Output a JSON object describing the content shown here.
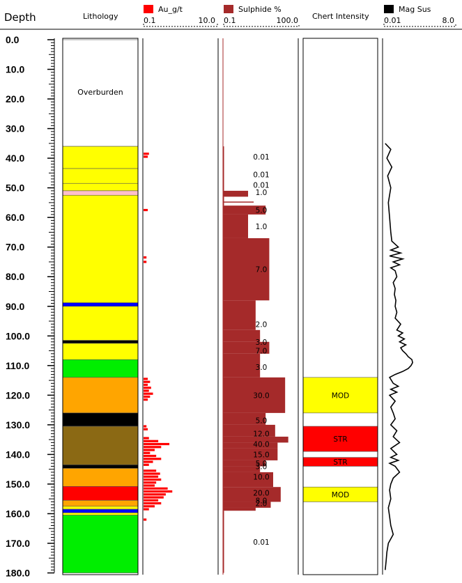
{
  "chart_data": {
    "type": "table",
    "depth": {
      "title": "Depth",
      "min": 0,
      "max": 180,
      "tick_labels": [
        "0.0",
        "10.0",
        "20.0",
        "30.0",
        "40.0",
        "50.0",
        "60.0",
        "70.0",
        "80.0",
        "90.0",
        "100.0",
        "110.0",
        "120.0",
        "130.0",
        "140.0",
        "150.0",
        "160.0",
        "170.0",
        "180.0"
      ]
    },
    "lithology": {
      "title": "Lithology",
      "overburden_label": "Overburden",
      "intervals": [
        {
          "from": 0,
          "to": 36,
          "color": "#ffffff"
        },
        {
          "from": 36,
          "to": 43.5,
          "color": "#ffff00"
        },
        {
          "from": 43.5,
          "to": 48.5,
          "color": "#ffff00"
        },
        {
          "from": 48.5,
          "to": 51,
          "color": "#ffff00"
        },
        {
          "from": 51,
          "to": 52.5,
          "color": "#ffc0cb"
        },
        {
          "from": 52.5,
          "to": 88.8,
          "color": "#ffff00"
        },
        {
          "from": 88.8,
          "to": 90,
          "color": "#0000ff"
        },
        {
          "from": 90,
          "to": 101.5,
          "color": "#ffff00"
        },
        {
          "from": 101.5,
          "to": 102.5,
          "color": "#000000"
        },
        {
          "from": 102.5,
          "to": 108,
          "color": "#ffff00"
        },
        {
          "from": 108,
          "to": 114,
          "color": "#00ee00"
        },
        {
          "from": 114,
          "to": 126,
          "color": "#ffa500"
        },
        {
          "from": 126,
          "to": 130.5,
          "color": "#000000"
        },
        {
          "from": 130.5,
          "to": 143.5,
          "color": "#8b6914"
        },
        {
          "from": 143.5,
          "to": 144.7,
          "color": "#000000"
        },
        {
          "from": 144.7,
          "to": 150.8,
          "color": "#ffa500"
        },
        {
          "from": 150.8,
          "to": 155.5,
          "color": "#ff0000"
        },
        {
          "from": 155.5,
          "to": 157.5,
          "color": "#ffa500"
        },
        {
          "from": 157.5,
          "to": 158.5,
          "color": "#ffff00"
        },
        {
          "from": 158.5,
          "to": 159.7,
          "color": "#0000ff"
        },
        {
          "from": 159.7,
          "to": 160.5,
          "color": "#ffff00"
        },
        {
          "from": 160.5,
          "to": 180,
          "color": "#00ee00"
        }
      ]
    },
    "au": {
      "title": "Au_g/t",
      "color": "#ff0000",
      "scale_min_label": "0.1",
      "scale_max_label": "10.0",
      "scale": "log",
      "range": [
        0.1,
        10
      ],
      "bars": [
        [
          38.5,
          0.14
        ],
        [
          39.5,
          0.13
        ],
        [
          57.5,
          0.13
        ],
        [
          73.5,
          0.12
        ],
        [
          75,
          0.12
        ],
        [
          114.5,
          0.13
        ],
        [
          115.5,
          0.15
        ],
        [
          116.5,
          0.13
        ],
        [
          117.5,
          0.16
        ],
        [
          118.5,
          0.14
        ],
        [
          119.5,
          0.18
        ],
        [
          120.5,
          0.15
        ],
        [
          121.5,
          0.13
        ],
        [
          130.5,
          0.12
        ],
        [
          131.5,
          0.13
        ],
        [
          134.5,
          0.14
        ],
        [
          135.5,
          0.25
        ],
        [
          136.5,
          0.5
        ],
        [
          137.5,
          0.3
        ],
        [
          138.5,
          0.2
        ],
        [
          139.5,
          0.15
        ],
        [
          140.5,
          0.22
        ],
        [
          141.5,
          0.3
        ],
        [
          142.5,
          0.18
        ],
        [
          143.5,
          0.14
        ],
        [
          145.5,
          0.22
        ],
        [
          146.5,
          0.28
        ],
        [
          147.5,
          0.25
        ],
        [
          148.5,
          0.3
        ],
        [
          149.5,
          0.22
        ],
        [
          150.5,
          0.2
        ],
        [
          151.5,
          0.45
        ],
        [
          152.5,
          0.6
        ],
        [
          153.5,
          0.4
        ],
        [
          154.5,
          0.35
        ],
        [
          155.5,
          0.25
        ],
        [
          156.5,
          0.3
        ],
        [
          157.5,
          0.2
        ],
        [
          158.5,
          0.14
        ],
        [
          162,
          0.12
        ]
      ]
    },
    "sulphide": {
      "title": "Sulphide %",
      "color": "#a52a2a",
      "scale_min_label": "0.1",
      "scale_max_label": "100.0",
      "scale": "log",
      "range": [
        0.1,
        100
      ],
      "intervals": [
        {
          "from": 36,
          "to": 51,
          "value": 0.01
        },
        {
          "from": 51,
          "to": 53,
          "value": 1.0
        },
        {
          "from": 53,
          "to": 56,
          "value": 0.01
        },
        {
          "from": 56,
          "to": 59,
          "value": 5.0
        },
        {
          "from": 59,
          "to": 67,
          "value": 1.0
        },
        {
          "from": 67,
          "to": 88,
          "value": 7.0
        },
        {
          "from": 88,
          "to": 98,
          "value": 2.0
        },
        {
          "from": 98,
          "to": 102,
          "value": 3.0
        },
        {
          "from": 102,
          "to": 106,
          "value": 7.0
        },
        {
          "from": 106,
          "to": 114,
          "value": 3.0
        },
        {
          "from": 114,
          "to": 126,
          "value": 30.0
        },
        {
          "from": 126,
          "to": 130,
          "value": 5.0
        },
        {
          "from": 130,
          "to": 134,
          "value": 12.0
        },
        {
          "from": 134,
          "to": 136,
          "value": 40.0
        },
        {
          "from": 136,
          "to": 138,
          "value": 15.0
        },
        {
          "from": 138,
          "to": 142,
          "value": 15.0
        },
        {
          "from": 142,
          "to": 144,
          "value": 5.0
        },
        {
          "from": 144,
          "to": 146,
          "value": 3.0
        },
        {
          "from": 146,
          "to": 151,
          "value": 10.0
        },
        {
          "from": 151,
          "to": 156,
          "value": 20.0
        },
        {
          "from": 156,
          "to": 158,
          "value": 8.0
        },
        {
          "from": 158,
          "to": 159,
          "value": 2.0
        },
        {
          "from": 159,
          "to": 180,
          "value": 0.01
        }
      ],
      "spike": {
        "depth": 54.8,
        "value": 100
      },
      "labels": [
        {
          "depth": 39.5,
          "text": "0.01"
        },
        {
          "depth": 45.5,
          "text": "0.01"
        },
        {
          "depth": 49.0,
          "text": "0.01"
        },
        {
          "depth": 51.5,
          "text": "1.0"
        },
        {
          "depth": 57.5,
          "text": "5.0"
        },
        {
          "depth": 63.0,
          "text": "1.0"
        },
        {
          "depth": 77.5,
          "text": "7.0"
        },
        {
          "depth": 96.0,
          "text": "2.0"
        },
        {
          "depth": 102.0,
          "text": "3.0"
        },
        {
          "depth": 105.0,
          "text": "7.0"
        },
        {
          "depth": 110.5,
          "text": "3.0"
        },
        {
          "depth": 120.0,
          "text": "30.0"
        },
        {
          "depth": 128.5,
          "text": "5.0"
        },
        {
          "depth": 133.0,
          "text": "12.0"
        },
        {
          "depth": 136.5,
          "text": "40.0"
        },
        {
          "depth": 140.0,
          "text": "15.0"
        },
        {
          "depth": 143.0,
          "text": "5.0"
        },
        {
          "depth": 144.0,
          "text": "3.0"
        },
        {
          "depth": 147.5,
          "text": "10.0"
        },
        {
          "depth": 153.0,
          "text": "20.0"
        },
        {
          "depth": 155.5,
          "text": "8.0"
        },
        {
          "depth": 156.5,
          "text": "2.0"
        },
        {
          "depth": 169.5,
          "text": "0.01"
        }
      ]
    },
    "chert": {
      "title": "Chert Intensity",
      "intervals": [
        {
          "from": 114,
          "to": 126,
          "label": "MOD",
          "color": "#ffff00"
        },
        {
          "from": 130.5,
          "to": 139,
          "label": "STR",
          "color": "#ff0000"
        },
        {
          "from": 141,
          "to": 144,
          "label": "STR",
          "color": "#ff0000"
        },
        {
          "from": 151,
          "to": 156,
          "label": "MOD",
          "color": "#ffff00"
        }
      ]
    },
    "magsus": {
      "title": "Mag Sus",
      "color": "#000000",
      "scale_min_label": "0.01",
      "scale_max_label": "8.0",
      "scale": "log",
      "range": [
        0.01,
        8
      ],
      "points": [
        [
          35,
          0.012
        ],
        [
          37,
          0.02
        ],
        [
          40,
          0.014
        ],
        [
          43,
          0.022
        ],
        [
          46,
          0.015
        ],
        [
          50,
          0.02
        ],
        [
          55,
          0.016
        ],
        [
          60,
          0.018
        ],
        [
          65,
          0.02
        ],
        [
          68,
          0.022
        ],
        [
          70,
          0.04
        ],
        [
          71,
          0.02
        ],
        [
          72,
          0.05
        ],
        [
          73,
          0.018
        ],
        [
          74,
          0.06
        ],
        [
          75,
          0.025
        ],
        [
          76,
          0.045
        ],
        [
          77,
          0.02
        ],
        [
          78,
          0.03
        ],
        [
          80,
          0.035
        ],
        [
          82,
          0.025
        ],
        [
          84,
          0.03
        ],
        [
          86,
          0.028
        ],
        [
          88,
          0.032
        ],
        [
          90,
          0.03
        ],
        [
          92,
          0.035
        ],
        [
          94,
          0.03
        ],
        [
          96,
          0.05
        ],
        [
          98,
          0.035
        ],
        [
          99,
          0.06
        ],
        [
          100,
          0.04
        ],
        [
          101,
          0.07
        ],
        [
          102,
          0.045
        ],
        [
          103,
          0.08
        ],
        [
          104,
          0.05
        ],
        [
          105,
          0.06
        ],
        [
          106,
          0.08
        ],
        [
          107,
          0.1
        ],
        [
          108,
          0.14
        ],
        [
          109,
          0.15
        ],
        [
          110,
          0.13
        ],
        [
          111,
          0.1
        ],
        [
          112,
          0.06
        ],
        [
          113,
          0.03
        ],
        [
          114,
          0.018
        ],
        [
          116,
          0.025
        ],
        [
          117,
          0.04
        ],
        [
          118,
          0.02
        ],
        [
          119,
          0.035
        ],
        [
          120,
          0.018
        ],
        [
          122,
          0.03
        ],
        [
          124,
          0.02
        ],
        [
          126,
          0.025
        ],
        [
          128,
          0.03
        ],
        [
          130,
          0.02
        ],
        [
          132,
          0.035
        ],
        [
          134,
          0.025
        ],
        [
          136,
          0.045
        ],
        [
          138,
          0.02
        ],
        [
          140,
          0.035
        ],
        [
          141,
          0.02
        ],
        [
          142,
          0.04
        ],
        [
          143,
          0.018
        ],
        [
          144,
          0.03
        ],
        [
          146,
          0.045
        ],
        [
          148,
          0.025
        ],
        [
          150,
          0.02
        ],
        [
          152,
          0.018
        ],
        [
          155,
          0.02
        ],
        [
          158,
          0.016
        ],
        [
          161,
          0.018
        ],
        [
          164,
          0.02
        ],
        [
          167,
          0.025
        ],
        [
          170,
          0.016
        ],
        [
          173,
          0.014
        ],
        [
          176,
          0.013
        ],
        [
          179,
          0.012
        ]
      ]
    }
  }
}
